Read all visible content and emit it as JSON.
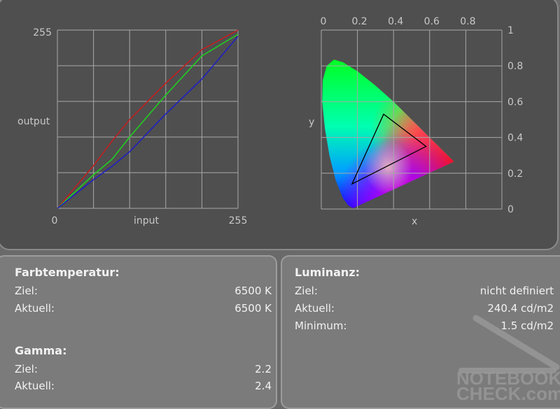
{
  "chart_data": [
    {
      "type": "line",
      "xlabel": "input",
      "ylabel": "output",
      "xlim": [
        0,
        255
      ],
      "ylim": [
        0,
        255
      ],
      "x_ticks": [
        "0",
        "255"
      ],
      "y_ticks": [
        "255"
      ],
      "grid": true,
      "x": [
        0,
        51,
        77,
        102,
        153,
        204,
        255
      ],
      "series": [
        {
          "color": "#c02020",
          "values": [
            0,
            61,
            96,
            127,
            179,
            227,
            255
          ]
        },
        {
          "color": "#20d020",
          "values": [
            0,
            48,
            70,
            102,
            162,
            218,
            249
          ]
        },
        {
          "color": "#2020c0",
          "values": [
            0,
            41,
            60,
            81,
            135,
            185,
            246
          ]
        }
      ]
    },
    {
      "type": "scatter",
      "subtype": "cie-chromaticity",
      "xlabel": "x",
      "ylabel": "y",
      "xlim": [
        0,
        1
      ],
      "ylim": [
        0,
        1
      ],
      "x_ticks": [
        "0",
        "0.2",
        "0.4",
        "0.6",
        "0.8"
      ],
      "y_ticks": [
        "0",
        "0.2",
        "0.4",
        "0.6",
        "0.8",
        "1"
      ],
      "grid": true,
      "gamut_triangle": [
        [
          0.345,
          0.53
        ],
        [
          0.58,
          0.35
        ],
        [
          0.17,
          0.14
        ]
      ]
    }
  ],
  "farbtemperatur": {
    "title": "Farbtemperatur:",
    "rows": [
      {
        "label": "Ziel:",
        "value": "6500 K"
      },
      {
        "label": "Aktuell:",
        "value": "6500 K"
      }
    ]
  },
  "gamma": {
    "title": "Gamma:",
    "rows": [
      {
        "label": "Ziel:",
        "value": "2.2"
      },
      {
        "label": "Aktuell:",
        "value": "2.4"
      }
    ]
  },
  "luminanz": {
    "title": "Luminanz:",
    "rows": [
      {
        "label": "Ziel:",
        "value": "nicht definiert"
      },
      {
        "label": "Aktuell:",
        "value": "240.4 cd/m2"
      },
      {
        "label": "Minimum:",
        "value": "1.5 cd/m2"
      }
    ]
  },
  "watermark": "NOTEBOOK CHECK.com"
}
